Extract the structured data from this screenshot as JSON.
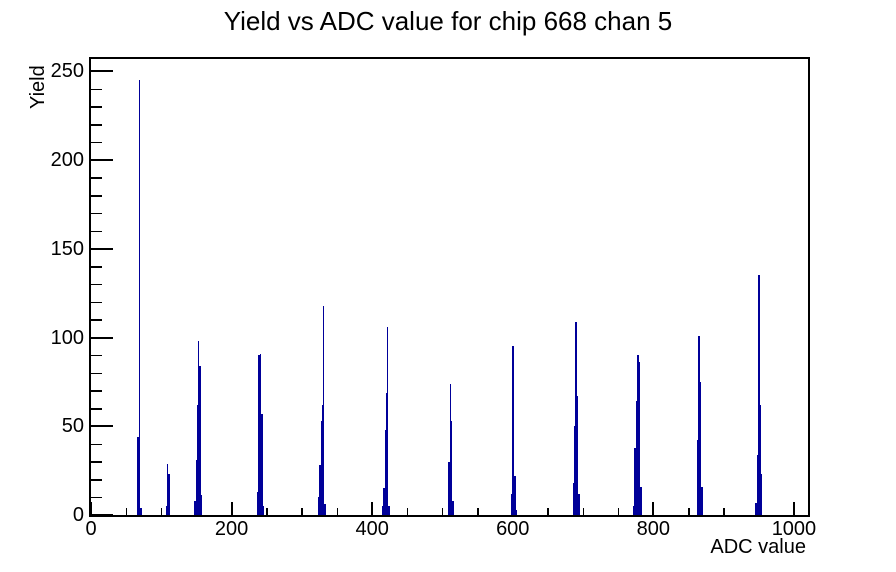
{
  "chart_data": {
    "type": "bar",
    "title": "Yield vs ADC value for chip 668 chan 5",
    "xlabel": "ADC value",
    "ylabel": "Yield",
    "xlim": [
      0,
      1020
    ],
    "ylim": [
      0,
      257
    ],
    "x_major_ticks": [
      0,
      200,
      400,
      600,
      800,
      1000
    ],
    "x_minor_step": 50,
    "y_major_ticks": [
      0,
      50,
      100,
      150,
      200,
      250
    ],
    "y_minor_step": 10,
    "grid": false,
    "legend": "none",
    "line_color": "#000099",
    "axis_color": "#000000",
    "background_color": "#ffffff",
    "peak_positions": [
      69,
      109,
      153,
      241,
      331,
      422,
      511,
      601,
      690,
      778,
      865,
      950
    ],
    "peak_yields": [
      245,
      29,
      98,
      91,
      118,
      106,
      74,
      95,
      109,
      90,
      101,
      135
    ],
    "peaks": [
      {
        "adc": 69,
        "yield": 245,
        "bars": [
          [
            -2,
            44
          ],
          [
            0,
            245
          ],
          [
            2,
            4
          ]
        ]
      },
      {
        "adc": 109,
        "yield": 29,
        "bars": [
          [
            -2,
            5
          ],
          [
            0,
            29
          ],
          [
            2,
            23
          ]
        ]
      },
      {
        "adc": 153,
        "yield": 98,
        "bars": [
          [
            -5,
            8
          ],
          [
            -3,
            31
          ],
          [
            -1,
            62
          ],
          [
            0,
            98
          ],
          [
            2,
            84
          ],
          [
            4,
            11
          ]
        ]
      },
      {
        "adc": 241,
        "yield": 91,
        "bars": [
          [
            -4,
            13
          ],
          [
            -2,
            90
          ],
          [
            0,
            91
          ],
          [
            2,
            57
          ],
          [
            4,
            5
          ]
        ]
      },
      {
        "adc": 331,
        "yield": 118,
        "bars": [
          [
            -7,
            10
          ],
          [
            -5,
            28
          ],
          [
            -3,
            53
          ],
          [
            -1,
            62
          ],
          [
            0,
            118
          ],
          [
            2,
            6
          ]
        ]
      },
      {
        "adc": 422,
        "yield": 106,
        "bars": [
          [
            -7,
            5
          ],
          [
            -5,
            15
          ],
          [
            -3,
            48
          ],
          [
            -1,
            69
          ],
          [
            0,
            106
          ],
          [
            2,
            5
          ]
        ]
      },
      {
        "adc": 511,
        "yield": 74,
        "bars": [
          [
            -2,
            30
          ],
          [
            0,
            74
          ],
          [
            2,
            53
          ],
          [
            4,
            8
          ]
        ]
      },
      {
        "adc": 601,
        "yield": 95,
        "bars": [
          [
            -3,
            12
          ],
          [
            -1,
            95
          ],
          [
            0,
            94
          ],
          [
            2,
            22
          ],
          [
            4,
            3
          ]
        ]
      },
      {
        "adc": 690,
        "yield": 109,
        "bars": [
          [
            -4,
            18
          ],
          [
            -2,
            50
          ],
          [
            0,
            109
          ],
          [
            2,
            67
          ],
          [
            4,
            12
          ]
        ]
      },
      {
        "adc": 778,
        "yield": 90,
        "bars": [
          [
            -6,
            5
          ],
          [
            -4,
            38
          ],
          [
            -2,
            64
          ],
          [
            0,
            90
          ],
          [
            2,
            86
          ],
          [
            4,
            16
          ]
        ]
      },
      {
        "adc": 865,
        "yield": 101,
        "bars": [
          [
            -2,
            42
          ],
          [
            0,
            101
          ],
          [
            2,
            75
          ],
          [
            4,
            16
          ]
        ]
      },
      {
        "adc": 950,
        "yield": 135,
        "bars": [
          [
            -4,
            7
          ],
          [
            -2,
            34
          ],
          [
            0,
            135
          ],
          [
            2,
            62
          ],
          [
            4,
            23
          ]
        ]
      }
    ]
  }
}
